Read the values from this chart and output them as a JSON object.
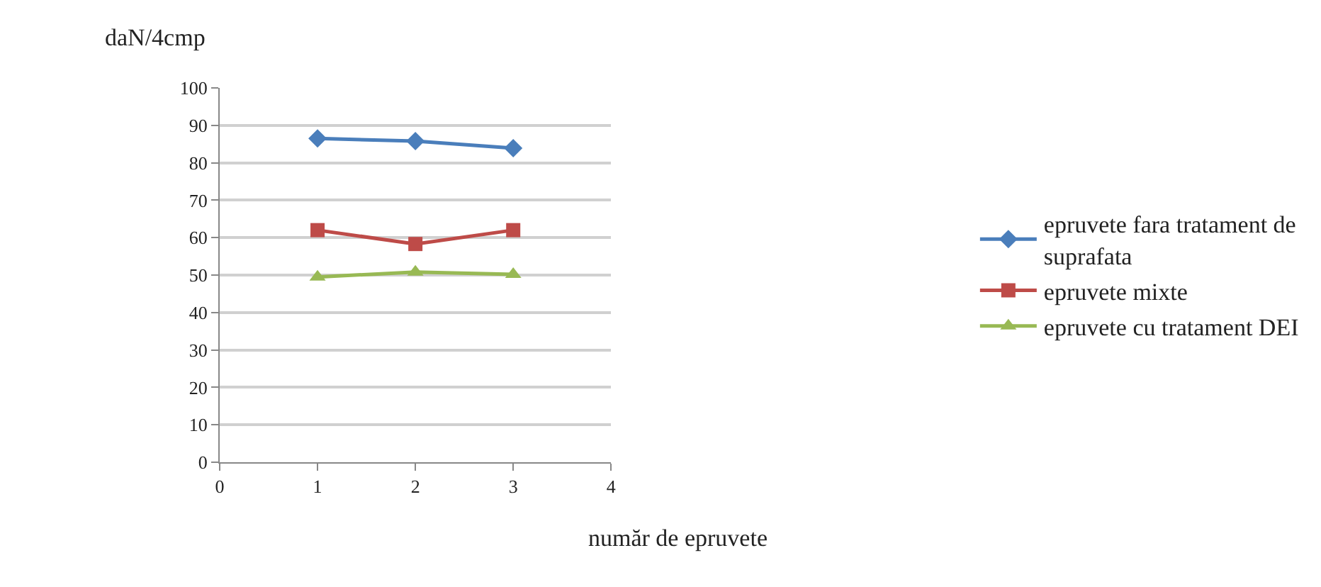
{
  "chart_data": {
    "type": "line",
    "ylabel": "daN/4cmp",
    "xlabel": "număr de epruvete",
    "x": [
      1,
      2,
      3
    ],
    "series": [
      {
        "name": "epruvete fara tratament de suprafata",
        "color": "#4a7ebb",
        "values": [
          86.5,
          85.8,
          83.9
        ],
        "marker": "diamond"
      },
      {
        "name": "epruvete mixte",
        "color": "#be4b48",
        "values": [
          62,
          58.3,
          62
        ],
        "marker": "square"
      },
      {
        "name": "epruvete cu tratament DEI",
        "color": "#98b954",
        "values": [
          49.5,
          50.8,
          50.2
        ],
        "marker": "triangle"
      }
    ],
    "xlim": [
      0,
      4
    ],
    "xticks": [
      0,
      1,
      2,
      3,
      4
    ],
    "ylim": [
      0,
      100
    ],
    "yticks": [
      0,
      10,
      20,
      30,
      40,
      50,
      60,
      70,
      80,
      90,
      100
    ],
    "grid": "y",
    "legend": "right",
    "line_style": "solid"
  }
}
